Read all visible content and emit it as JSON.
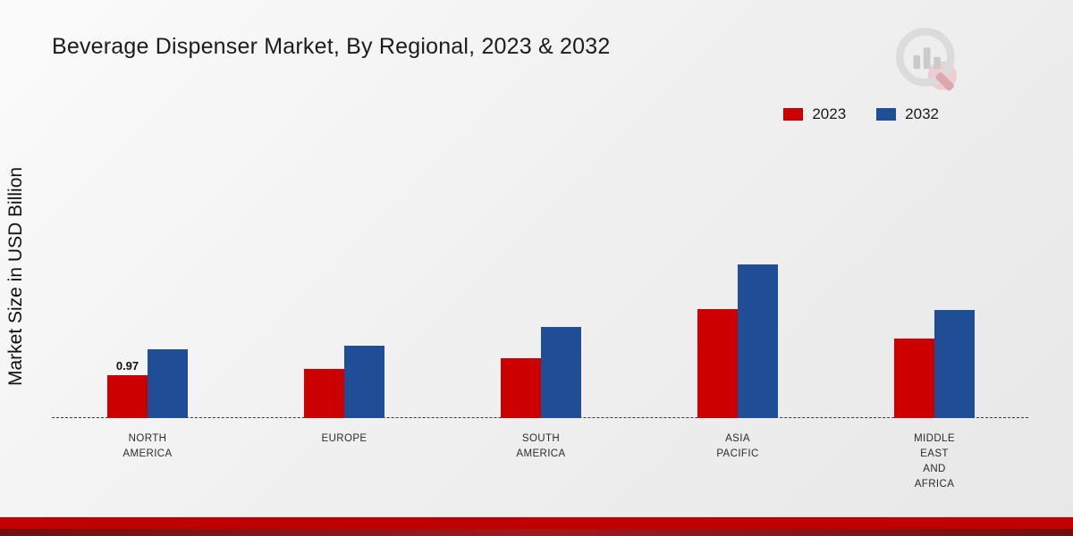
{
  "title": "Beverage Dispenser Market, By Regional, 2023 & 2032",
  "ylabel": "Market Size in USD Billion",
  "legend": [
    {
      "label": "2023",
      "color": "#cc0001"
    },
    {
      "label": "2032",
      "color": "#1f4e96"
    }
  ],
  "chart_data": {
    "type": "bar",
    "title": "Beverage Dispenser Market, By Regional, 2023 & 2032",
    "xlabel": "",
    "ylabel": "Market Size in USD Billion",
    "categories": [
      "NORTH AMERICA",
      "EUROPE",
      "SOUTH AMERICA",
      "ASIA PACIFIC",
      "MIDDLE EAST AND AFRICA"
    ],
    "category_lines": [
      [
        "NORTH",
        "AMERICA"
      ],
      [
        "EUROPE"
      ],
      [
        "SOUTH",
        "AMERICA"
      ],
      [
        "ASIA",
        "PACIFIC"
      ],
      [
        "MIDDLE",
        "EAST",
        "AND",
        "AFRICA"
      ]
    ],
    "series": [
      {
        "name": "2023",
        "color": "#cc0001",
        "values": [
          0.97,
          1.1,
          1.35,
          2.45,
          1.78
        ]
      },
      {
        "name": "2032",
        "color": "#1f4e96",
        "values": [
          1.55,
          1.62,
          2.05,
          3.45,
          2.42
        ]
      }
    ],
    "annotations": [
      {
        "category_index": 0,
        "series": "2023",
        "text": "0.97"
      }
    ],
    "ylim": [
      0,
      4
    ],
    "grid": false,
    "axis_style": "dashed-baseline",
    "legend_position": "top-right"
  }
}
